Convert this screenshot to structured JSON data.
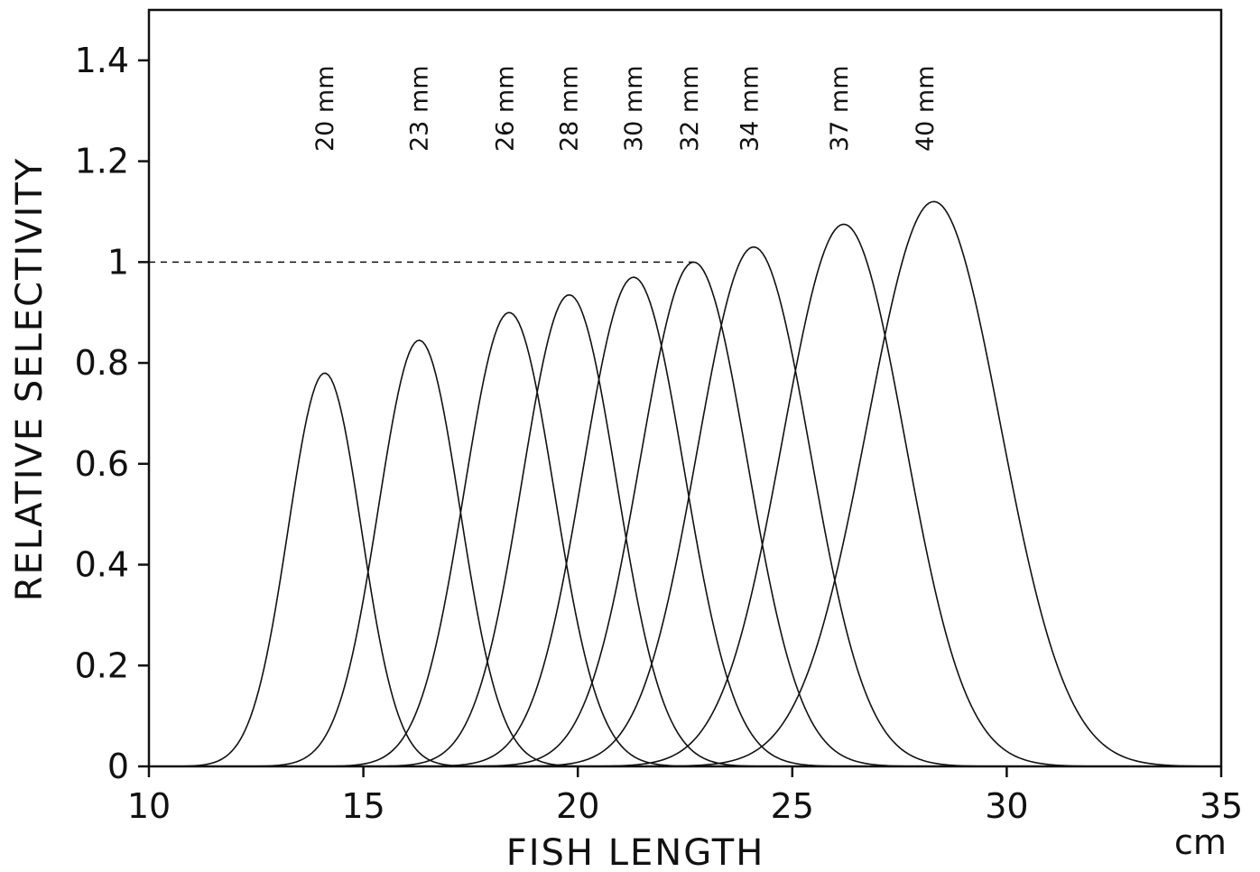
{
  "chart_data": {
    "type": "line",
    "title": "",
    "xlabel": "FISH LENGTH",
    "ylabel": "RELATIVE SELECTIVITY",
    "x_unit_label": "cm",
    "xlim": [
      10,
      35
    ],
    "ylim": [
      0,
      1.5
    ],
    "x_ticks": [
      10,
      15,
      20,
      25,
      30,
      35
    ],
    "x_tick_labels": [
      "10",
      "15",
      "20",
      "25",
      "30",
      "35"
    ],
    "y_ticks": [
      0,
      0.2,
      0.4,
      0.6,
      0.8,
      1,
      1.2,
      1.4
    ],
    "y_tick_labels": [
      "0",
      "0.2",
      "0.4",
      "0.6",
      "0.8",
      "1",
      "1.2",
      "1.4"
    ],
    "grid": false,
    "legend": "none",
    "reference_line": {
      "y": 1.0,
      "x_from": 10,
      "x_to": 22.7,
      "style": "dashed"
    },
    "series": [
      {
        "name": "20 mm",
        "label_x": 14.1,
        "peak_x": 14.1,
        "peak_y": 0.78,
        "spread": 0.85
      },
      {
        "name": "23 mm",
        "label_x": 16.3,
        "peak_x": 16.3,
        "peak_y": 0.845,
        "spread": 0.95
      },
      {
        "name": "26 mm",
        "label_x": 18.3,
        "peak_x": 18.4,
        "peak_y": 0.9,
        "spread": 1.05
      },
      {
        "name": "28 mm",
        "label_x": 19.8,
        "peak_x": 19.8,
        "peak_y": 0.935,
        "spread": 1.1
      },
      {
        "name": "30 mm",
        "label_x": 21.3,
        "peak_x": 21.3,
        "peak_y": 0.97,
        "spread": 1.18
      },
      {
        "name": "32 mm",
        "label_x": 22.6,
        "peak_x": 22.7,
        "peak_y": 1.0,
        "spread": 1.25
      },
      {
        "name": "34 mm",
        "label_x": 24.0,
        "peak_x": 24.1,
        "peak_y": 1.03,
        "spread": 1.32
      },
      {
        "name": "37 mm",
        "label_x": 26.1,
        "peak_x": 26.2,
        "peak_y": 1.075,
        "spread": 1.42
      },
      {
        "name": "40 mm",
        "label_x": 28.1,
        "peak_x": 28.3,
        "peak_y": 1.12,
        "spread": 1.55
      }
    ]
  }
}
